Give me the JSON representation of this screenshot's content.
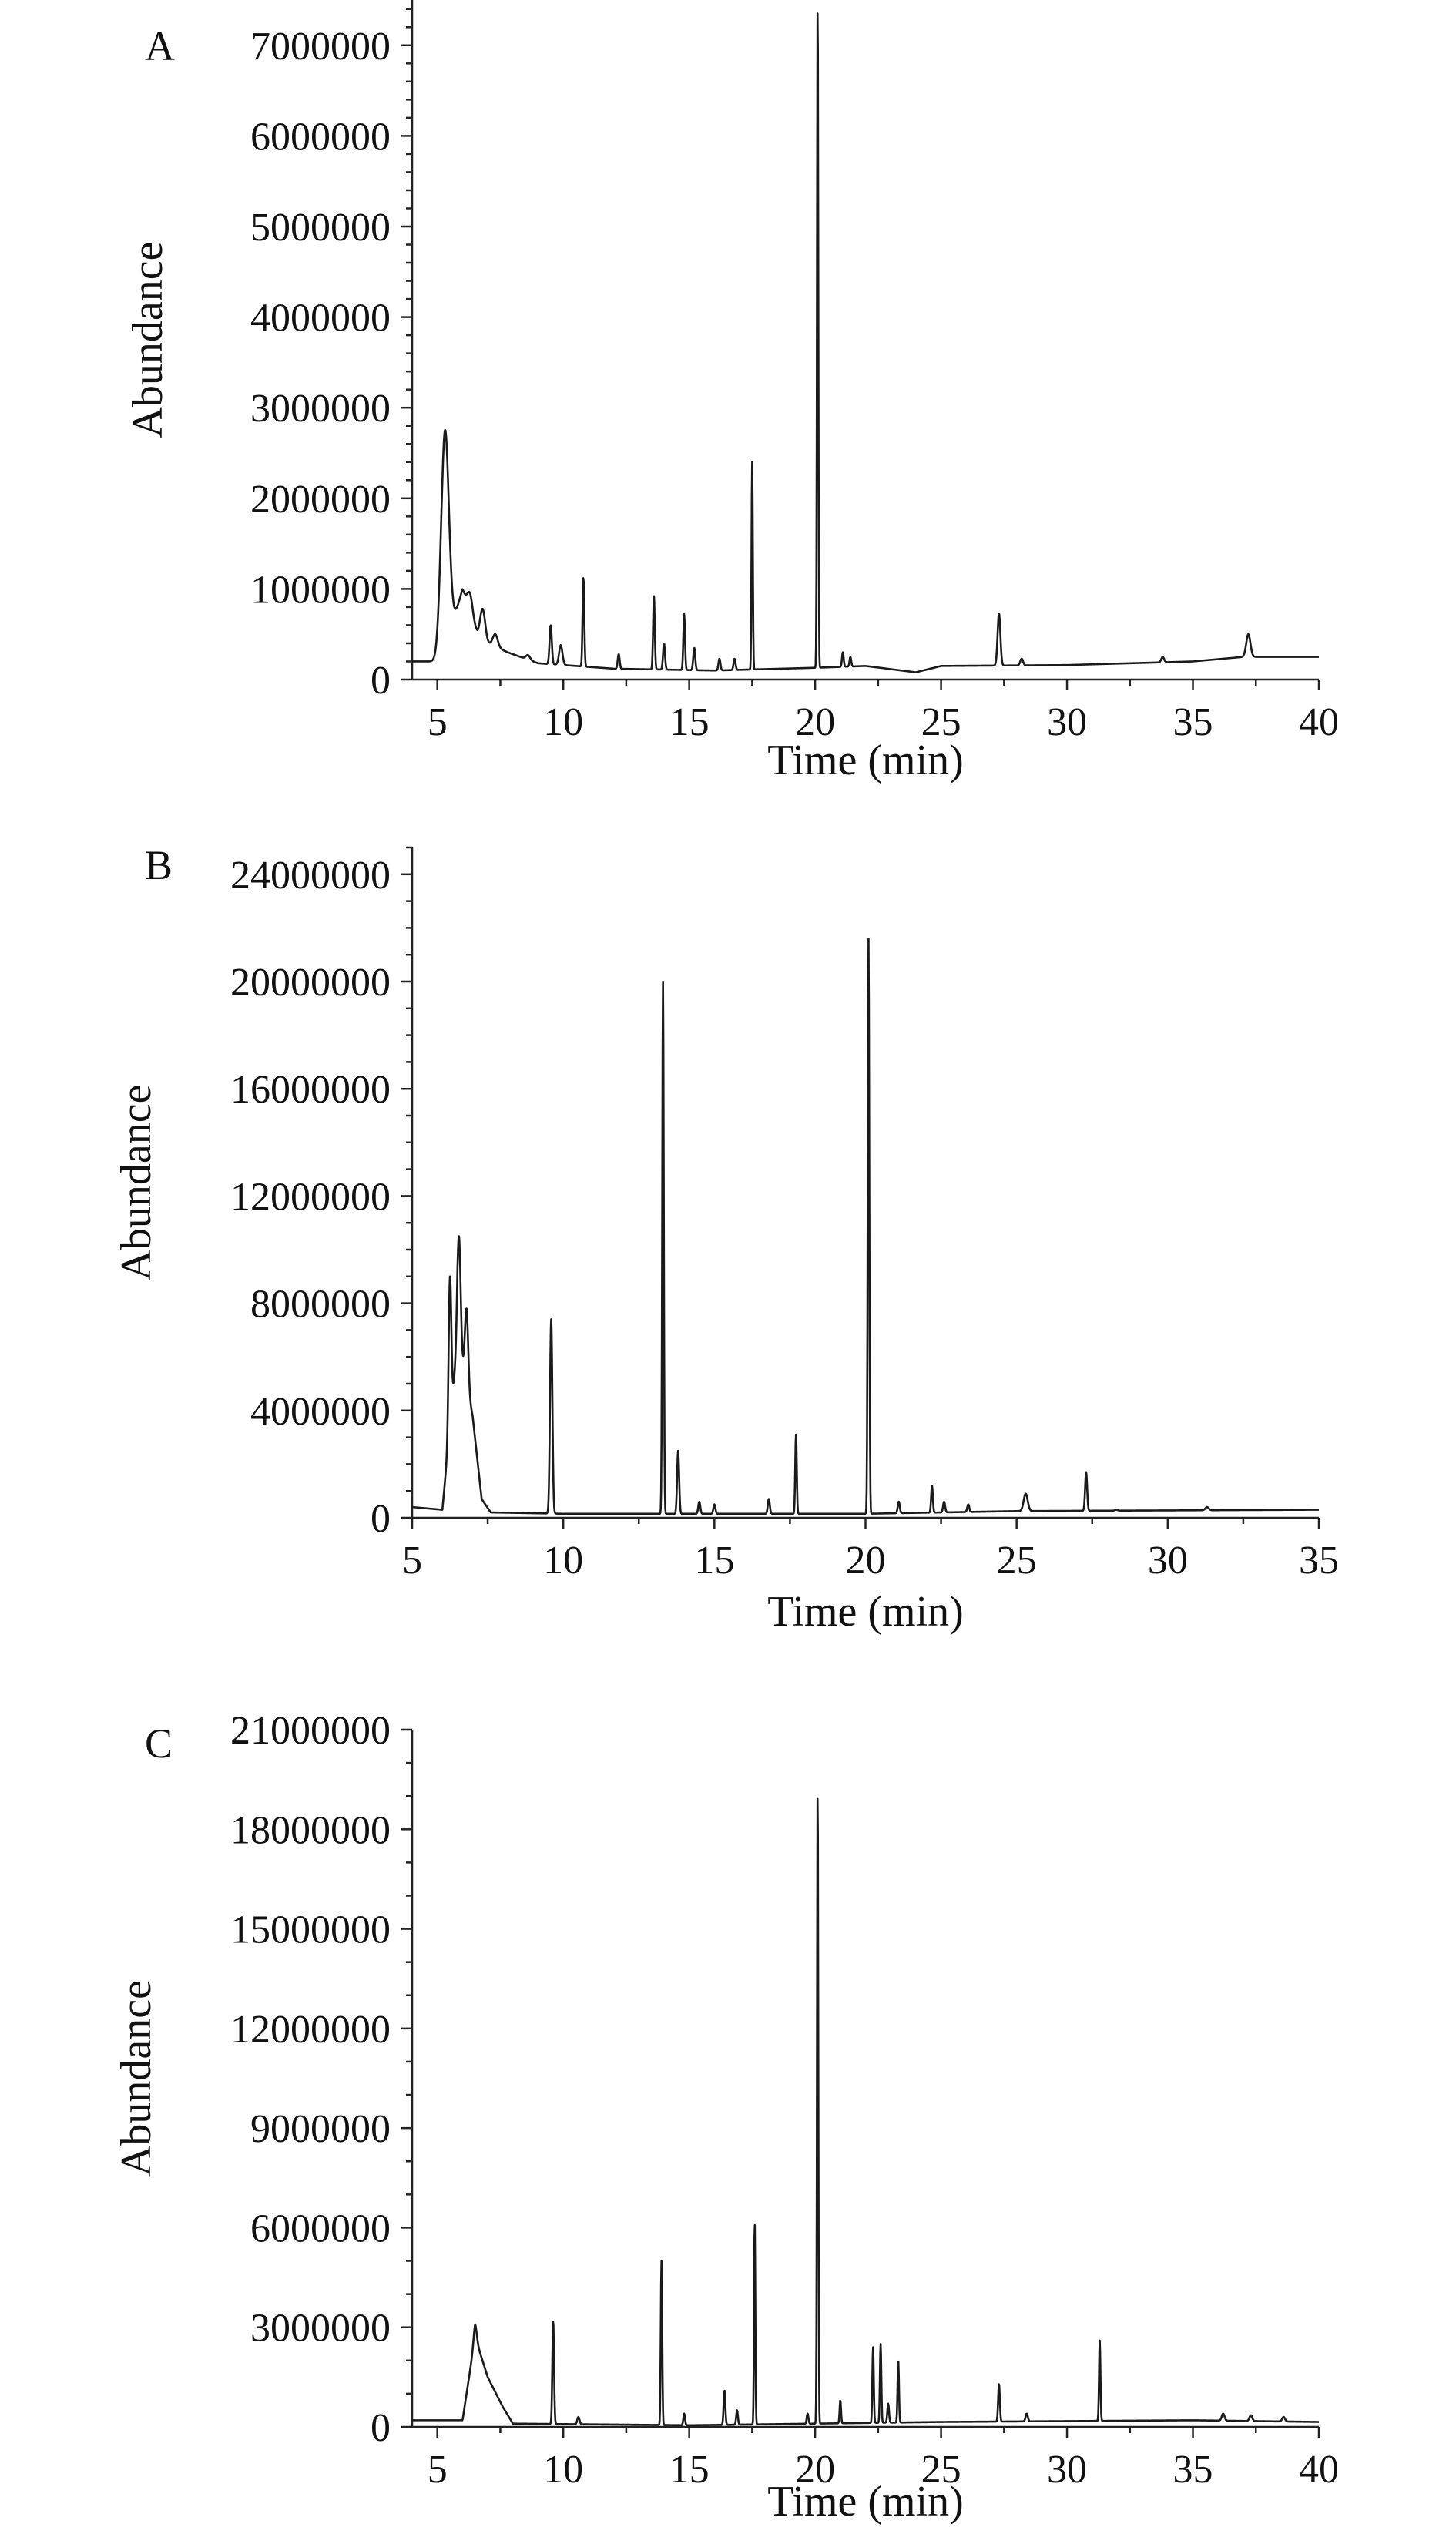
{
  "chart_data": [
    {
      "panel": "A",
      "type": "line",
      "xlabel": "Time (min)",
      "ylabel": "Abundance",
      "xlim": [
        4,
        40
      ],
      "ylim": [
        0,
        7500000
      ],
      "xticks": [
        5,
        10,
        15,
        20,
        25,
        30,
        35,
        40
      ],
      "yticks": [
        0,
        1000000,
        2000000,
        3000000,
        4000000,
        5000000,
        6000000,
        7000000
      ],
      "ytick_labels": [
        "0",
        "1000000",
        "2000000",
        "3000000",
        "4000000",
        "5000000",
        "6000000",
        "7000000"
      ],
      "baseline": [
        [
          4.0,
          200000
        ],
        [
          5.2,
          200000
        ],
        [
          6.0,
          1000000
        ],
        [
          6.6,
          500000
        ],
        [
          7.0,
          400000
        ],
        [
          7.8,
          300000
        ],
        [
          9.0,
          180000
        ],
        [
          12.0,
          120000
        ],
        [
          16.0,
          100000
        ],
        [
          20.0,
          130000
        ],
        [
          22.0,
          150000
        ],
        [
          24.0,
          80000
        ],
        [
          25.0,
          150000
        ],
        [
          30.0,
          160000
        ],
        [
          35.0,
          200000
        ],
        [
          37.0,
          250000
        ],
        [
          40.0,
          250000
        ]
      ],
      "peaks": [
        {
          "x": 5.3,
          "y": 2750000,
          "w": 0.28
        },
        {
          "x": 6.3,
          "y": 950000,
          "w": 0.18
        },
        {
          "x": 6.8,
          "y": 780000,
          "w": 0.18
        },
        {
          "x": 7.3,
          "y": 500000,
          "w": 0.18
        },
        {
          "x": 8.0,
          "y": 280000,
          "w": 0.15
        },
        {
          "x": 8.6,
          "y": 270000,
          "w": 0.15
        },
        {
          "x": 9.5,
          "y": 600000,
          "w": 0.08
        },
        {
          "x": 9.9,
          "y": 380000,
          "w": 0.12
        },
        {
          "x": 10.8,
          "y": 1130000,
          "w": 0.06
        },
        {
          "x": 12.2,
          "y": 280000,
          "w": 0.07
        },
        {
          "x": 13.6,
          "y": 920000,
          "w": 0.06
        },
        {
          "x": 14.0,
          "y": 400000,
          "w": 0.07
        },
        {
          "x": 14.8,
          "y": 720000,
          "w": 0.06
        },
        {
          "x": 15.2,
          "y": 350000,
          "w": 0.07
        },
        {
          "x": 16.2,
          "y": 230000,
          "w": 0.07
        },
        {
          "x": 16.8,
          "y": 230000,
          "w": 0.07
        },
        {
          "x": 17.5,
          "y": 2400000,
          "w": 0.045
        },
        {
          "x": 20.1,
          "y": 7500000,
          "w": 0.045
        },
        {
          "x": 21.1,
          "y": 300000,
          "w": 0.06
        },
        {
          "x": 21.4,
          "y": 250000,
          "w": 0.06
        },
        {
          "x": 27.3,
          "y": 730000,
          "w": 0.1
        },
        {
          "x": 28.2,
          "y": 230000,
          "w": 0.1
        },
        {
          "x": 33.8,
          "y": 250000,
          "w": 0.1
        },
        {
          "x": 37.2,
          "y": 500000,
          "w": 0.15
        }
      ]
    },
    {
      "panel": "B",
      "type": "line",
      "xlabel": "Time (min)",
      "ylabel": "Abundance",
      "xlim": [
        5,
        35
      ],
      "ylim": [
        0,
        25000000
      ],
      "xticks": [
        5,
        10,
        15,
        20,
        25,
        30,
        35
      ],
      "yticks": [
        0,
        4000000,
        8000000,
        12000000,
        16000000,
        20000000,
        24000000
      ],
      "ytick_labels": [
        "0",
        "4000000",
        "8000000",
        "12000000",
        "16000000",
        "20000000",
        "24000000"
      ],
      "baseline": [
        [
          5.0,
          400000
        ],
        [
          6.0,
          300000
        ],
        [
          6.5,
          6500000
        ],
        [
          7.0,
          3800000
        ],
        [
          7.3,
          700000
        ],
        [
          7.6,
          200000
        ],
        [
          10.0,
          150000
        ],
        [
          20.0,
          150000
        ],
        [
          25.0,
          250000
        ],
        [
          35.0,
          300000
        ]
      ],
      "peaks": [
        {
          "x": 6.25,
          "y": 9000000,
          "w": 0.08
        },
        {
          "x": 6.55,
          "y": 10500000,
          "w": 0.1
        },
        {
          "x": 6.8,
          "y": 7800000,
          "w": 0.1
        },
        {
          "x": 9.6,
          "y": 7400000,
          "w": 0.07
        },
        {
          "x": 13.3,
          "y": 20000000,
          "w": 0.045
        },
        {
          "x": 13.8,
          "y": 2500000,
          "w": 0.06
        },
        {
          "x": 14.5,
          "y": 600000,
          "w": 0.06
        },
        {
          "x": 15.0,
          "y": 500000,
          "w": 0.06
        },
        {
          "x": 16.8,
          "y": 700000,
          "w": 0.06
        },
        {
          "x": 17.7,
          "y": 3100000,
          "w": 0.045
        },
        {
          "x": 20.1,
          "y": 21600000,
          "w": 0.045
        },
        {
          "x": 21.1,
          "y": 600000,
          "w": 0.06
        },
        {
          "x": 22.2,
          "y": 1200000,
          "w": 0.05
        },
        {
          "x": 22.6,
          "y": 600000,
          "w": 0.06
        },
        {
          "x": 23.4,
          "y": 500000,
          "w": 0.06
        },
        {
          "x": 25.3,
          "y": 900000,
          "w": 0.12
        },
        {
          "x": 27.3,
          "y": 1700000,
          "w": 0.06
        },
        {
          "x": 28.3,
          "y": 300000,
          "w": 0.08
        },
        {
          "x": 31.3,
          "y": 400000,
          "w": 0.1
        }
      ]
    },
    {
      "panel": "C",
      "type": "line",
      "xlabel": "Time (min)",
      "ylabel": "Abundance",
      "xlim": [
        4,
        40
      ],
      "ylim": [
        0,
        21000000
      ],
      "xticks": [
        5,
        10,
        15,
        20,
        25,
        30,
        35,
        40
      ],
      "yticks": [
        0,
        3000000,
        6000000,
        9000000,
        12000000,
        15000000,
        18000000,
        21000000
      ],
      "ytick_labels": [
        "0",
        "3000000",
        "6000000",
        "9000000",
        "12000000",
        "15000000",
        "18000000",
        "21000000"
      ],
      "baseline": [
        [
          4.0,
          200000
        ],
        [
          6.0,
          200000
        ],
        [
          6.5,
          2700000
        ],
        [
          7.0,
          1500000
        ],
        [
          7.6,
          600000
        ],
        [
          8.0,
          100000
        ],
        [
          15.0,
          50000
        ],
        [
          20.0,
          100000
        ],
        [
          25.0,
          150000
        ],
        [
          35.0,
          200000
        ],
        [
          40.0,
          150000
        ]
      ],
      "peaks": [
        {
          "x": 6.5,
          "y": 3100000,
          "w": 0.12
        },
        {
          "x": 9.6,
          "y": 3200000,
          "w": 0.06
        },
        {
          "x": 10.6,
          "y": 300000,
          "w": 0.08
        },
        {
          "x": 13.9,
          "y": 5000000,
          "w": 0.05
        },
        {
          "x": 14.8,
          "y": 400000,
          "w": 0.06
        },
        {
          "x": 16.4,
          "y": 1100000,
          "w": 0.06
        },
        {
          "x": 16.9,
          "y": 500000,
          "w": 0.06
        },
        {
          "x": 17.6,
          "y": 6200000,
          "w": 0.045
        },
        {
          "x": 19.7,
          "y": 400000,
          "w": 0.06
        },
        {
          "x": 20.1,
          "y": 19300000,
          "w": 0.045
        },
        {
          "x": 21.0,
          "y": 800000,
          "w": 0.05
        },
        {
          "x": 22.3,
          "y": 2400000,
          "w": 0.05
        },
        {
          "x": 22.6,
          "y": 2500000,
          "w": 0.05
        },
        {
          "x": 22.9,
          "y": 700000,
          "w": 0.06
        },
        {
          "x": 23.3,
          "y": 2000000,
          "w": 0.05
        },
        {
          "x": 27.3,
          "y": 1300000,
          "w": 0.06
        },
        {
          "x": 28.4,
          "y": 400000,
          "w": 0.08
        },
        {
          "x": 31.3,
          "y": 2600000,
          "w": 0.05
        },
        {
          "x": 36.2,
          "y": 400000,
          "w": 0.1
        },
        {
          "x": 37.3,
          "y": 350000,
          "w": 0.1
        },
        {
          "x": 38.6,
          "y": 300000,
          "w": 0.1
        }
      ]
    }
  ]
}
